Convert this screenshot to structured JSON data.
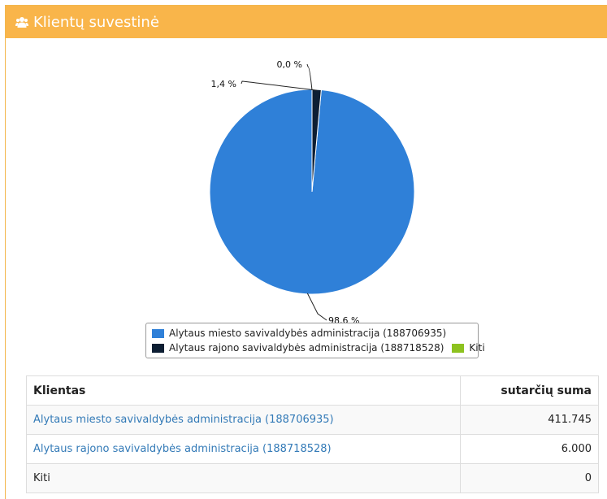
{
  "header": {
    "title": "Klientų suvestinė",
    "icon": "users-icon"
  },
  "colors": {
    "header_bg": "#f9b54a",
    "link": "#337ab7"
  },
  "chart_data": {
    "type": "pie",
    "slices": [
      {
        "label": "Alytaus miesto savivaldybės administracija (188706935)",
        "value": 411745,
        "pct_label": "98,6 %",
        "color": "#2f80d8"
      },
      {
        "label": "Alytaus rajono savivaldybės administracija (188718528)",
        "value": 6000,
        "pct_label": "1,4 %",
        "color": "#0d1e33"
      },
      {
        "label": "Kiti",
        "value": 0,
        "pct_label": "0,0 %",
        "color": "#8dc21f"
      }
    ],
    "legend_position": "bottom"
  },
  "table": {
    "headers": [
      "Klientas",
      "sutarčių suma"
    ],
    "rows": [
      {
        "client": "Alytaus miesto savivaldybės administracija (188706935)",
        "amount": "411.745",
        "link": true
      },
      {
        "client": "Alytaus rajono savivaldybės administracija (188718528)",
        "amount": "6.000",
        "link": true
      },
      {
        "client": "Kiti",
        "amount": "0",
        "link": false
      }
    ]
  }
}
